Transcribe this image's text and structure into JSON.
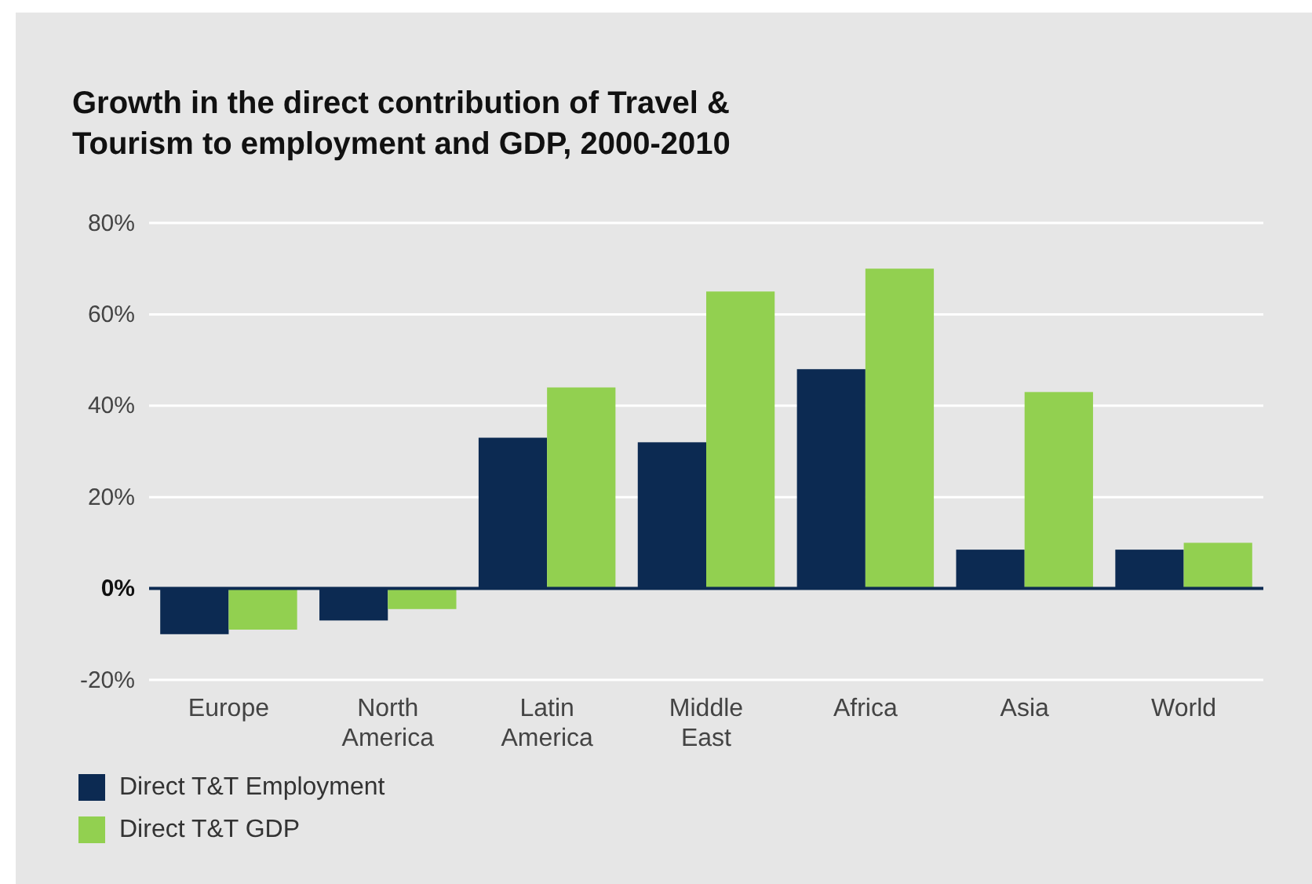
{
  "chart_data": {
    "type": "bar",
    "title": "Growth in the direct contribution of Travel & Tourism to employment and GDP, 2000-2010",
    "categories": [
      "Europe",
      "North America",
      "Latin America",
      "Middle East",
      "Africa",
      "Asia",
      "World"
    ],
    "series": [
      {
        "name": "Direct T&T Employment",
        "color": "#0c2a52",
        "values": [
          -10,
          -7,
          33,
          32,
          48,
          8.5,
          8.5
        ]
      },
      {
        "name": "Direct T&T GDP",
        "color": "#92d050",
        "values": [
          -9,
          -4.5,
          44,
          65,
          70,
          43,
          10
        ]
      }
    ],
    "ylim": [
      -20,
      80
    ],
    "yticks": [
      {
        "value": -20,
        "label": "-20%"
      },
      {
        "value": 0,
        "label": "0%"
      },
      {
        "value": 20,
        "label": "20%"
      },
      {
        "value": 40,
        "label": "40%"
      },
      {
        "value": 60,
        "label": "60%"
      },
      {
        "value": 80,
        "label": "80%"
      }
    ],
    "grid": "y",
    "legend": "bottom left"
  }
}
